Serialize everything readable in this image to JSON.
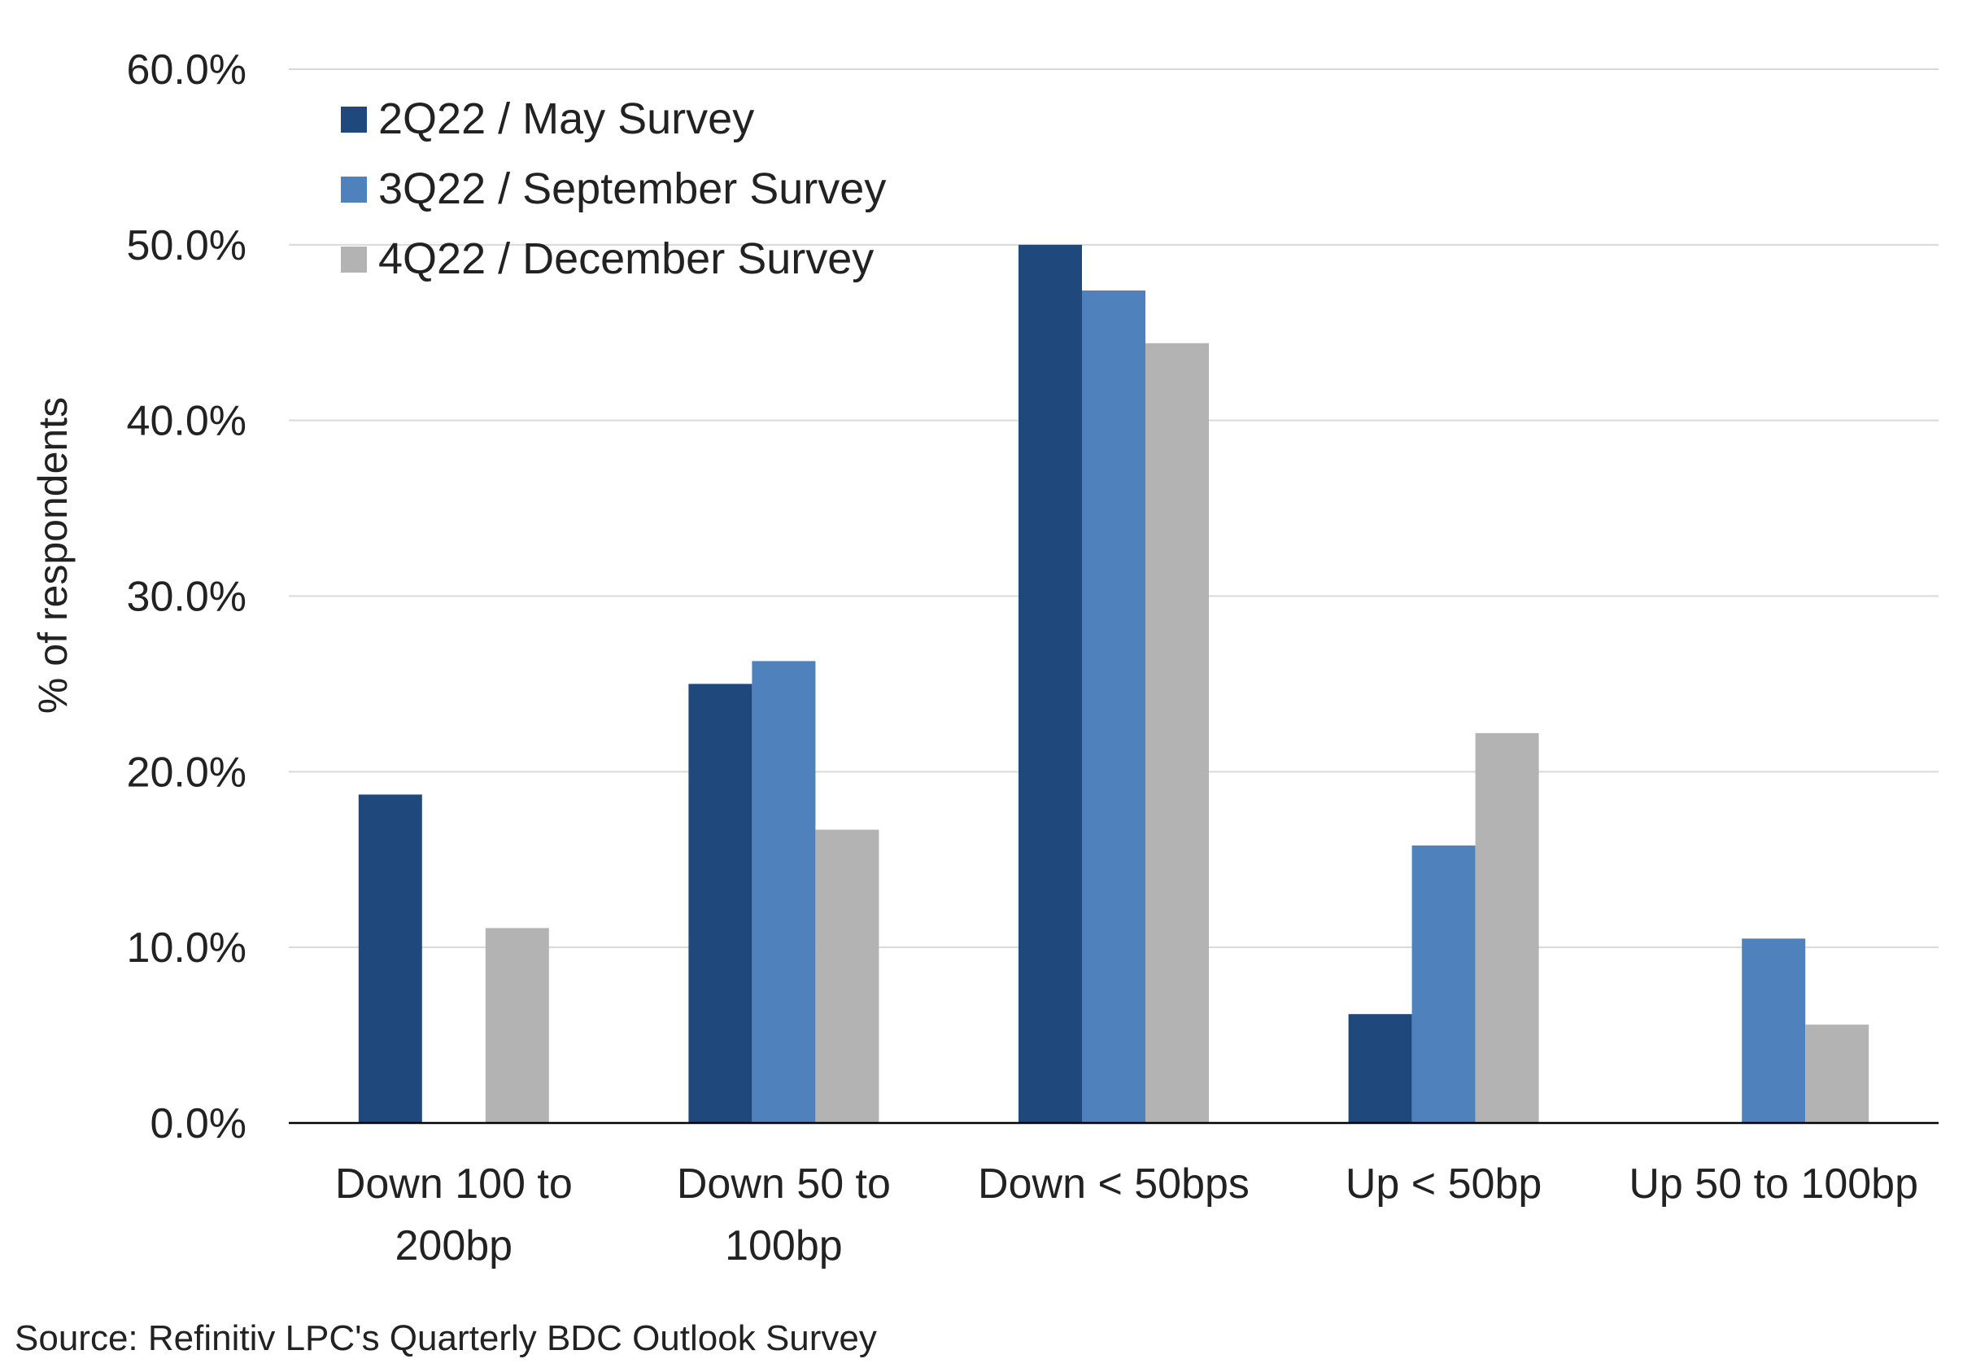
{
  "chart_data": {
    "type": "bar",
    "categories": [
      [
        "Down 100 to",
        "200bp"
      ],
      [
        "Down 50 to",
        "100bp"
      ],
      [
        "Down < 50bps"
      ],
      [
        "Up < 50bp"
      ],
      [
        "Up 50 to 100bp"
      ]
    ],
    "series": [
      {
        "name": "2Q22 / May Survey",
        "color": "#1f497d",
        "values": [
          18.7,
          25.0,
          50.0,
          6.2,
          0.0
        ]
      },
      {
        "name": "3Q22 / September Survey",
        "color": "#4f81bd",
        "values": [
          0.0,
          26.3,
          47.4,
          15.8,
          10.5
        ]
      },
      {
        "name": "4Q22 / December Survey",
        "color": "#b3b3b3",
        "values": [
          11.1,
          16.7,
          44.4,
          22.2,
          5.6
        ]
      }
    ],
    "y_ticks": [
      "0.0%",
      "10.0%",
      "20.0%",
      "30.0%",
      "40.0%",
      "50.0%",
      "60.0%"
    ],
    "ylim": [
      0,
      60
    ],
    "ylabel": "% of respondents",
    "xlabel": "",
    "title": "",
    "grid": true,
    "legend_position": "top-left"
  },
  "source_note": "Source: Refinitiv LPC's Quarterly BDC Outlook Survey"
}
